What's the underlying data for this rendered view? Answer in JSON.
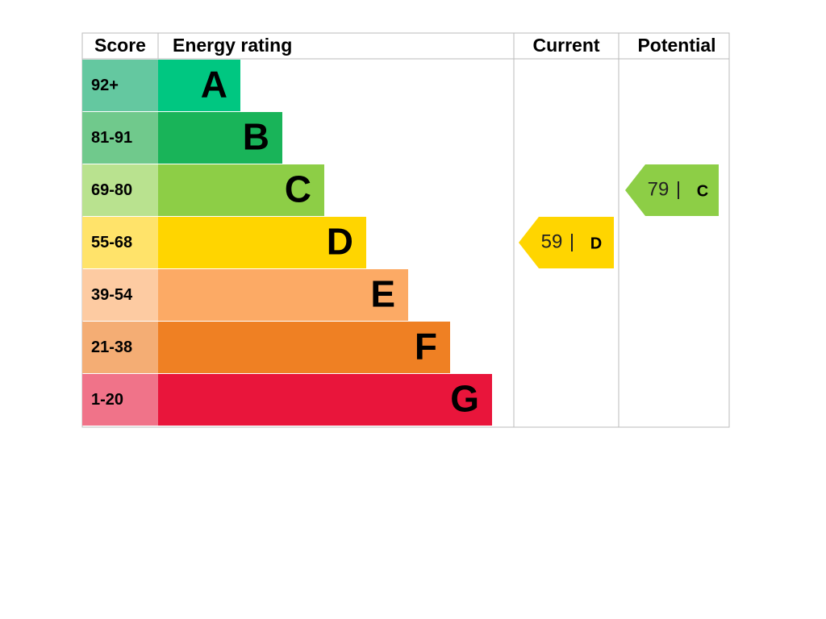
{
  "header": {
    "score": "Score",
    "energy_rating": "Energy rating",
    "current": "Current",
    "potential": "Potential"
  },
  "bands": [
    {
      "score": "92+",
      "letter": "A",
      "color": "#00c781",
      "score_color": "#64c8a0"
    },
    {
      "score": "81-91",
      "letter": "B",
      "color": "#19b459",
      "score_color": "#70c98c"
    },
    {
      "score": "69-80",
      "letter": "C",
      "color": "#8dce46",
      "score_color": "#b9e28f"
    },
    {
      "score": "55-68",
      "letter": "D",
      "color": "#ffd500",
      "score_color": "#ffe36a"
    },
    {
      "score": "39-54",
      "letter": "E",
      "color": "#fcaa65",
      "score_color": "#fdcba2"
    },
    {
      "score": "21-38",
      "letter": "F",
      "color": "#ef8023",
      "score_color": "#f4ad74"
    },
    {
      "score": "1-20",
      "letter": "G",
      "color": "#e9153b",
      "score_color": "#f07389"
    }
  ],
  "current": {
    "value": 59,
    "letter": "D"
  },
  "potential": {
    "value": 79,
    "letter": "C"
  }
}
